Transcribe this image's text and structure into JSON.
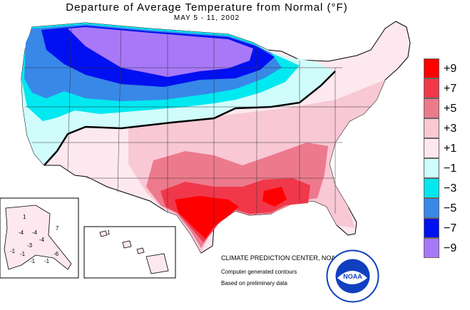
{
  "title": "Departure of Average Temperature from Normal (°F)",
  "period": "MAY 5 - 11, 2002",
  "legend": {
    "items": [
      {
        "label": "+9",
        "color": "#ff0000"
      },
      {
        "label": "+7",
        "color": "#f0384a"
      },
      {
        "label": "+5",
        "color": "#ec7a8c"
      },
      {
        "label": "+3",
        "color": "#f8c8d4"
      },
      {
        "label": "+1",
        "color": "#fce8ee"
      },
      {
        "label": "−1",
        "color": "#d0fcfc"
      },
      {
        "label": "−3",
        "color": "#00e8f0"
      },
      {
        "label": "−5",
        "color": "#3888e8"
      },
      {
        "label": "−7",
        "color": "#0010f0"
      },
      {
        "label": "−9",
        "color": "#a878f8"
      }
    ]
  },
  "credits": {
    "agency": "CLIMATE PREDICTION CENTER, NOAA",
    "line1": "Computer generated contours",
    "line2": "Based on preliminary data"
  },
  "logo": {
    "text": "NOAA"
  },
  "alaska_labels": [
    "1",
    "-4",
    "-4",
    "7",
    "-3",
    "-1",
    "-6",
    "-1",
    "-1",
    "-4",
    "-1"
  ],
  "hawaii_labels": [
    "1"
  ]
}
